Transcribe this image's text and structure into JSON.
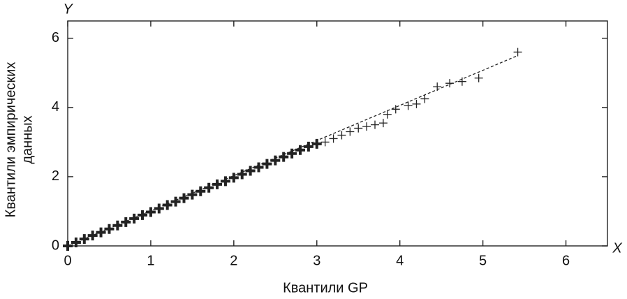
{
  "chart_data": {
    "type": "scatter",
    "x_axis_name": "X",
    "y_axis_name": "Y",
    "xlabel": "Квантили GP",
    "ylabel": [
      "Квантили эмпирических",
      "данных"
    ],
    "xlim": [
      0,
      6.5
    ],
    "ylim": [
      0,
      6.5
    ],
    "xticks": [
      0,
      1,
      2,
      3,
      4,
      5,
      6
    ],
    "yticks": [
      0,
      2,
      4,
      6
    ],
    "color": "#222222",
    "x": [
      0,
      0.1,
      0.2,
      0.3,
      0.4,
      0.5,
      0.6,
      0.7,
      0.8,
      0.9,
      1.0,
      1.1,
      1.2,
      1.3,
      1.4,
      1.5,
      1.6,
      1.7,
      1.8,
      1.9,
      2.0,
      2.1,
      2.2,
      2.3,
      2.4,
      2.5,
      2.6,
      2.7,
      2.8,
      2.9,
      3.0,
      3.1,
      3.2,
      3.3,
      3.4,
      3.5,
      3.6,
      3.7,
      3.8,
      3.85,
      3.95,
      4.1,
      4.2,
      4.3,
      4.45,
      4.6,
      4.75,
      4.95,
      5.42
    ],
    "y": [
      0,
      0.1,
      0.2,
      0.3,
      0.39,
      0.49,
      0.59,
      0.69,
      0.79,
      0.89,
      0.98,
      1.08,
      1.18,
      1.28,
      1.38,
      1.48,
      1.58,
      1.68,
      1.78,
      1.87,
      1.97,
      2.07,
      2.17,
      2.27,
      2.37,
      2.47,
      2.57,
      2.67,
      2.77,
      2.87,
      2.95,
      3.0,
      3.1,
      3.2,
      3.3,
      3.4,
      3.45,
      3.5,
      3.55,
      3.8,
      3.95,
      4.05,
      4.1,
      4.25,
      4.6,
      4.7,
      4.75,
      4.85,
      5.6
    ],
    "reference_line": {
      "x": [
        0,
        5.42
      ],
      "y": [
        0,
        5.5
      ]
    }
  }
}
